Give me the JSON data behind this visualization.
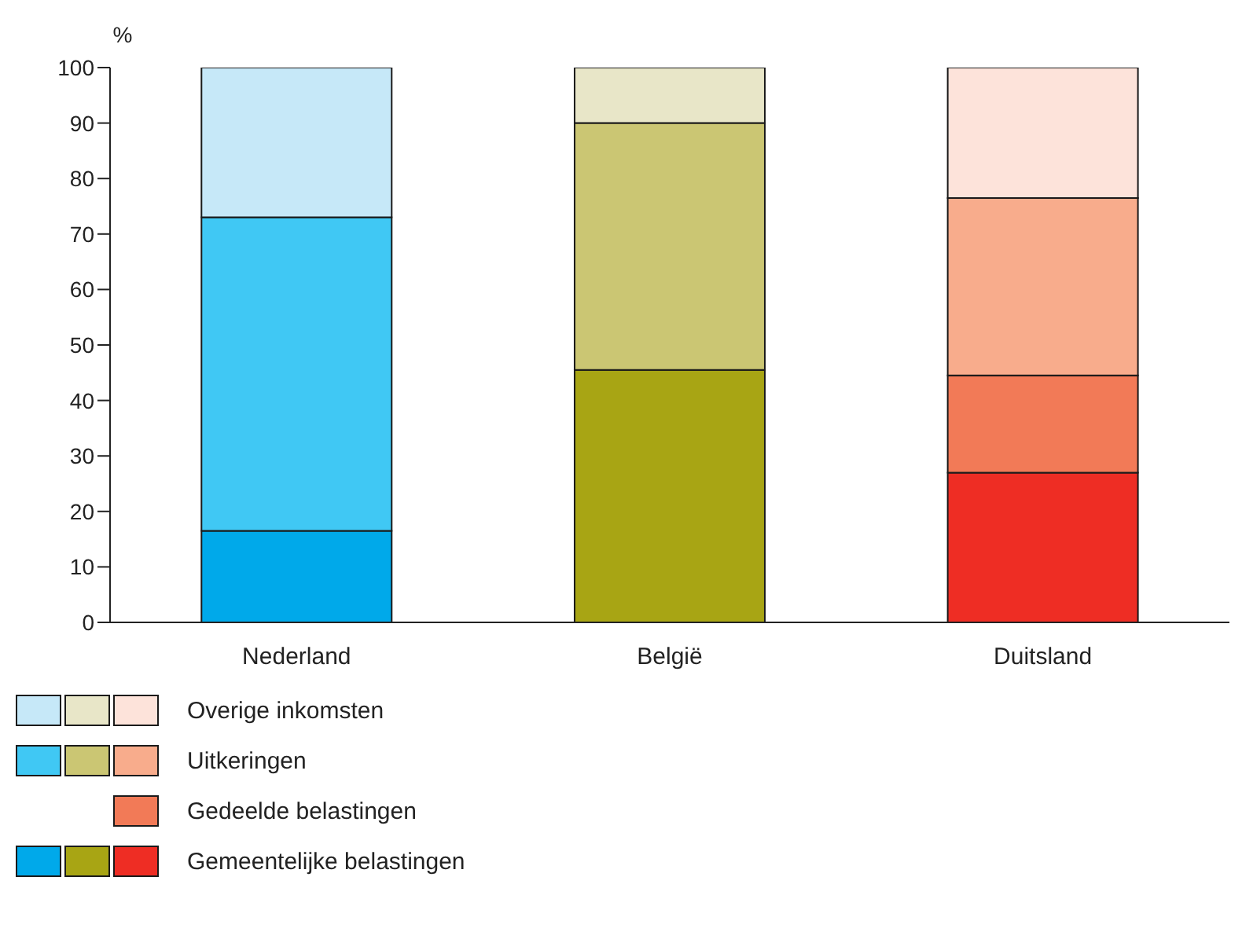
{
  "chart_data": {
    "type": "bar",
    "stacked": true,
    "ylabel": "%",
    "categories": [
      "Nederland",
      "België",
      "Duitsland"
    ],
    "ylim": [
      0,
      100
    ],
    "yticks": [
      0,
      10,
      20,
      30,
      40,
      50,
      60,
      70,
      80,
      90,
      100
    ],
    "grid": false,
    "legend": "bottom",
    "series": [
      {
        "name": "Gemeentelijke belastingen",
        "colors": [
          "#00a9ea",
          "#a8a514",
          "#ee2d24"
        ],
        "values": [
          16.5,
          45.5,
          27
        ]
      },
      {
        "name": "Gedeelde belastingen",
        "colors": [
          null,
          null,
          "#f27a57"
        ],
        "values": [
          null,
          null,
          17.5
        ]
      },
      {
        "name": "Uitkeringen",
        "colors": [
          "#40c8f4",
          "#cbc673",
          "#f8ac8c"
        ],
        "values": [
          56.5,
          44.5,
          32
        ]
      },
      {
        "name": "Overige inkomsten",
        "colors": [
          "#c6e8f8",
          "#e8e6c8",
          "#fde3da"
        ],
        "values": [
          27,
          10,
          23.5
        ]
      }
    ]
  }
}
